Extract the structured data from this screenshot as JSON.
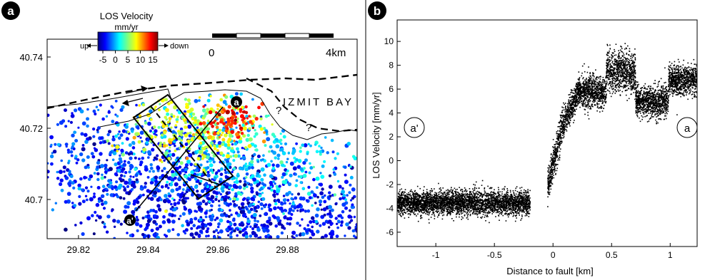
{
  "chart_data": [
    {
      "type": "scatter",
      "panel": "a",
      "description_labels": {
        "colorbar_title": "LOS Velocity",
        "colorbar_unit": "mm/yr",
        "colorbar_left": "up",
        "colorbar_right": "down",
        "colorbar_ticks": [
          "-5",
          "0",
          "5",
          "10",
          "15"
        ],
        "colorbar_range": [
          -7,
          17
        ],
        "scalebar_start": "0",
        "scalebar_end": "4km",
        "place_label": "IZMIT BAY",
        "question_marks": [
          "?",
          "?"
        ],
        "profile_end_a": "a",
        "profile_end_a_prime": "a'"
      },
      "x_ticks": [
        "29.82",
        "29.84",
        "29.86",
        "29.88"
      ],
      "y_ticks": [
        "40.74",
        "40.72",
        "40.7"
      ],
      "xlim": [
        29.811,
        29.9
      ],
      "ylim": [
        40.689,
        40.745
      ],
      "grid": false,
      "clusters": [
        {
          "lon": 29.845,
          "lat": 40.702,
          "v": -4.2
        },
        {
          "lon": 29.862,
          "lat": 40.696,
          "v": -3.5
        },
        {
          "lon": 29.892,
          "lat": 40.694,
          "v": -3.8
        },
        {
          "lon": 29.83,
          "lat": 40.713,
          "v": -2.5
        },
        {
          "lon": 29.872,
          "lat": 40.712,
          "v": 1.0
        },
        {
          "lon": 29.852,
          "lat": 40.72,
          "v": 7.0
        },
        {
          "lon": 29.864,
          "lat": 40.722,
          "v": 13.5
        }
      ]
    },
    {
      "type": "scatter",
      "panel": "b",
      "xlabel": "Distance to fault [km]",
      "ylabel": "LOS Velocity [mm/yr]",
      "x_ticks": [
        "-1",
        "-0.5",
        "0",
        "0.5",
        "1"
      ],
      "y_ticks": [
        "-6",
        "-4",
        "-2",
        "0",
        "2",
        "4",
        "6",
        "8",
        "10"
      ],
      "xlim": [
        -1.33,
        1.23
      ],
      "ylim": [
        -7.2,
        11.8
      ],
      "grid": false,
      "end_labels": {
        "left": "a'",
        "right": "a"
      },
      "profile_segments": [
        {
          "x0": -1.33,
          "x1": -0.2,
          "y": -3.5,
          "spread": 0.9
        },
        {
          "x0": -0.05,
          "x1": 0.08,
          "y0": -2.0,
          "y1": 3.0,
          "spread": 1.3
        },
        {
          "x0": 0.08,
          "x1": 0.22,
          "y0": 3.0,
          "y1": 6.0,
          "spread": 1.1
        },
        {
          "x0": 0.22,
          "x1": 0.45,
          "y": 5.8,
          "spread": 1.2
        },
        {
          "x0": 0.45,
          "x1": 0.7,
          "y": 7.5,
          "spread": 1.5
        },
        {
          "x0": 0.7,
          "x1": 0.98,
          "y": 5.0,
          "spread": 1.2
        },
        {
          "x0": 0.98,
          "x1": 1.23,
          "y": 6.8,
          "spread": 1.1
        }
      ]
    }
  ],
  "panel_labels": {
    "a": "a",
    "b": "b"
  }
}
